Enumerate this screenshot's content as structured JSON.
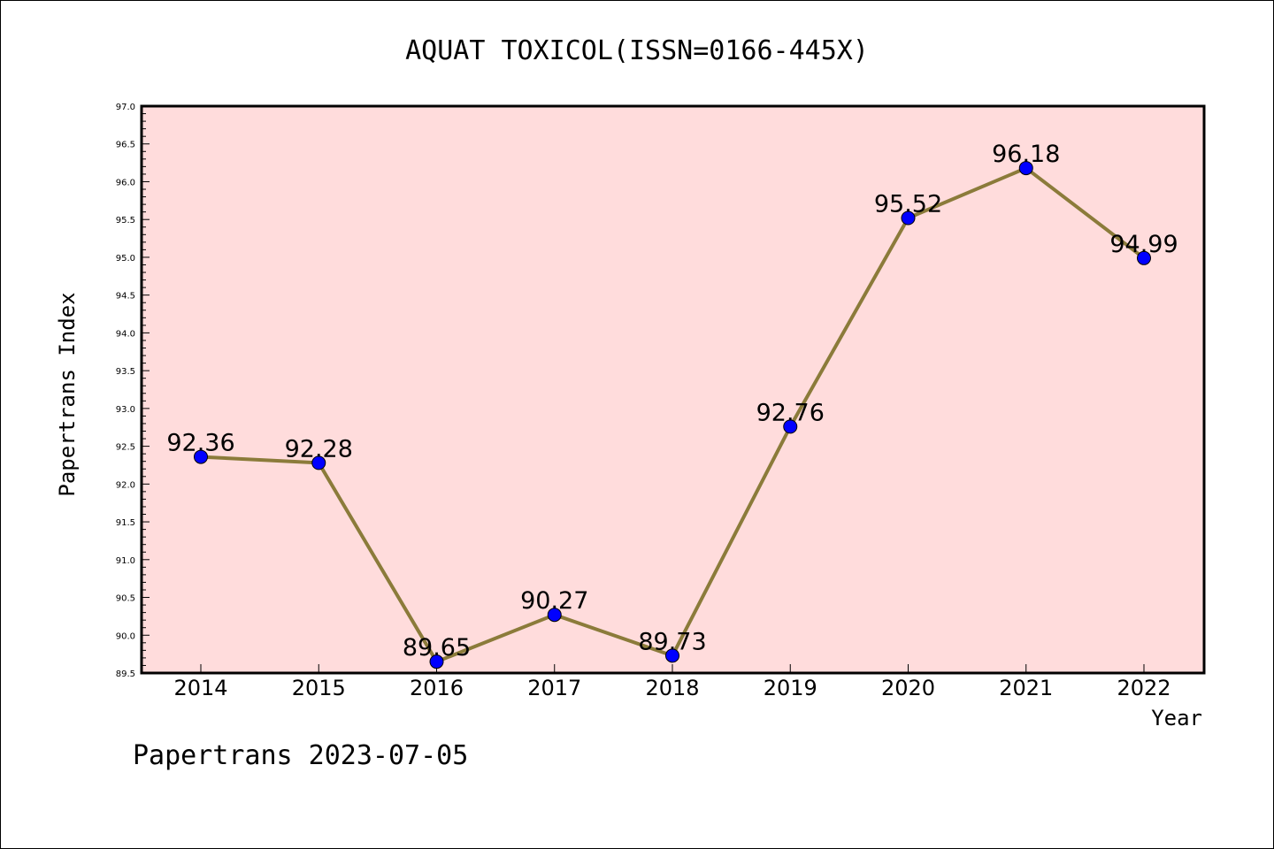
{
  "chart_data": {
    "type": "line",
    "title": "AQUAT TOXICOL(ISSN=0166-445X)",
    "xlabel": "Year",
    "ylabel": "Papertrans Index",
    "x": [
      "2014",
      "2015",
      "2016",
      "2017",
      "2018",
      "2019",
      "2020",
      "2021",
      "2022"
    ],
    "series": [
      {
        "values": [
          92.36,
          92.28,
          89.65,
          90.27,
          89.73,
          92.76,
          95.52,
          96.18,
          94.99
        ],
        "labels": [
          "92.36",
          "92.28",
          "89.65",
          "90.27",
          "89.73",
          "92.76",
          "95.52",
          "96.18",
          "94.99"
        ],
        "line_color": "#8B7B3A",
        "marker_color": "#0000FF"
      }
    ],
    "ylim": [
      89.5,
      97.0
    ],
    "yticks": [
      "89.5",
      "90.0",
      "90.5",
      "91.0",
      "91.5",
      "92.0",
      "92.5",
      "93.0",
      "93.5",
      "94.0",
      "94.5",
      "95.0",
      "95.5",
      "96.0",
      "96.5",
      "97.0"
    ],
    "plot_background": "#FFDCDC",
    "grid": false,
    "legend": "none"
  },
  "footer": {
    "text": "Papertrans 2023-07-05"
  }
}
